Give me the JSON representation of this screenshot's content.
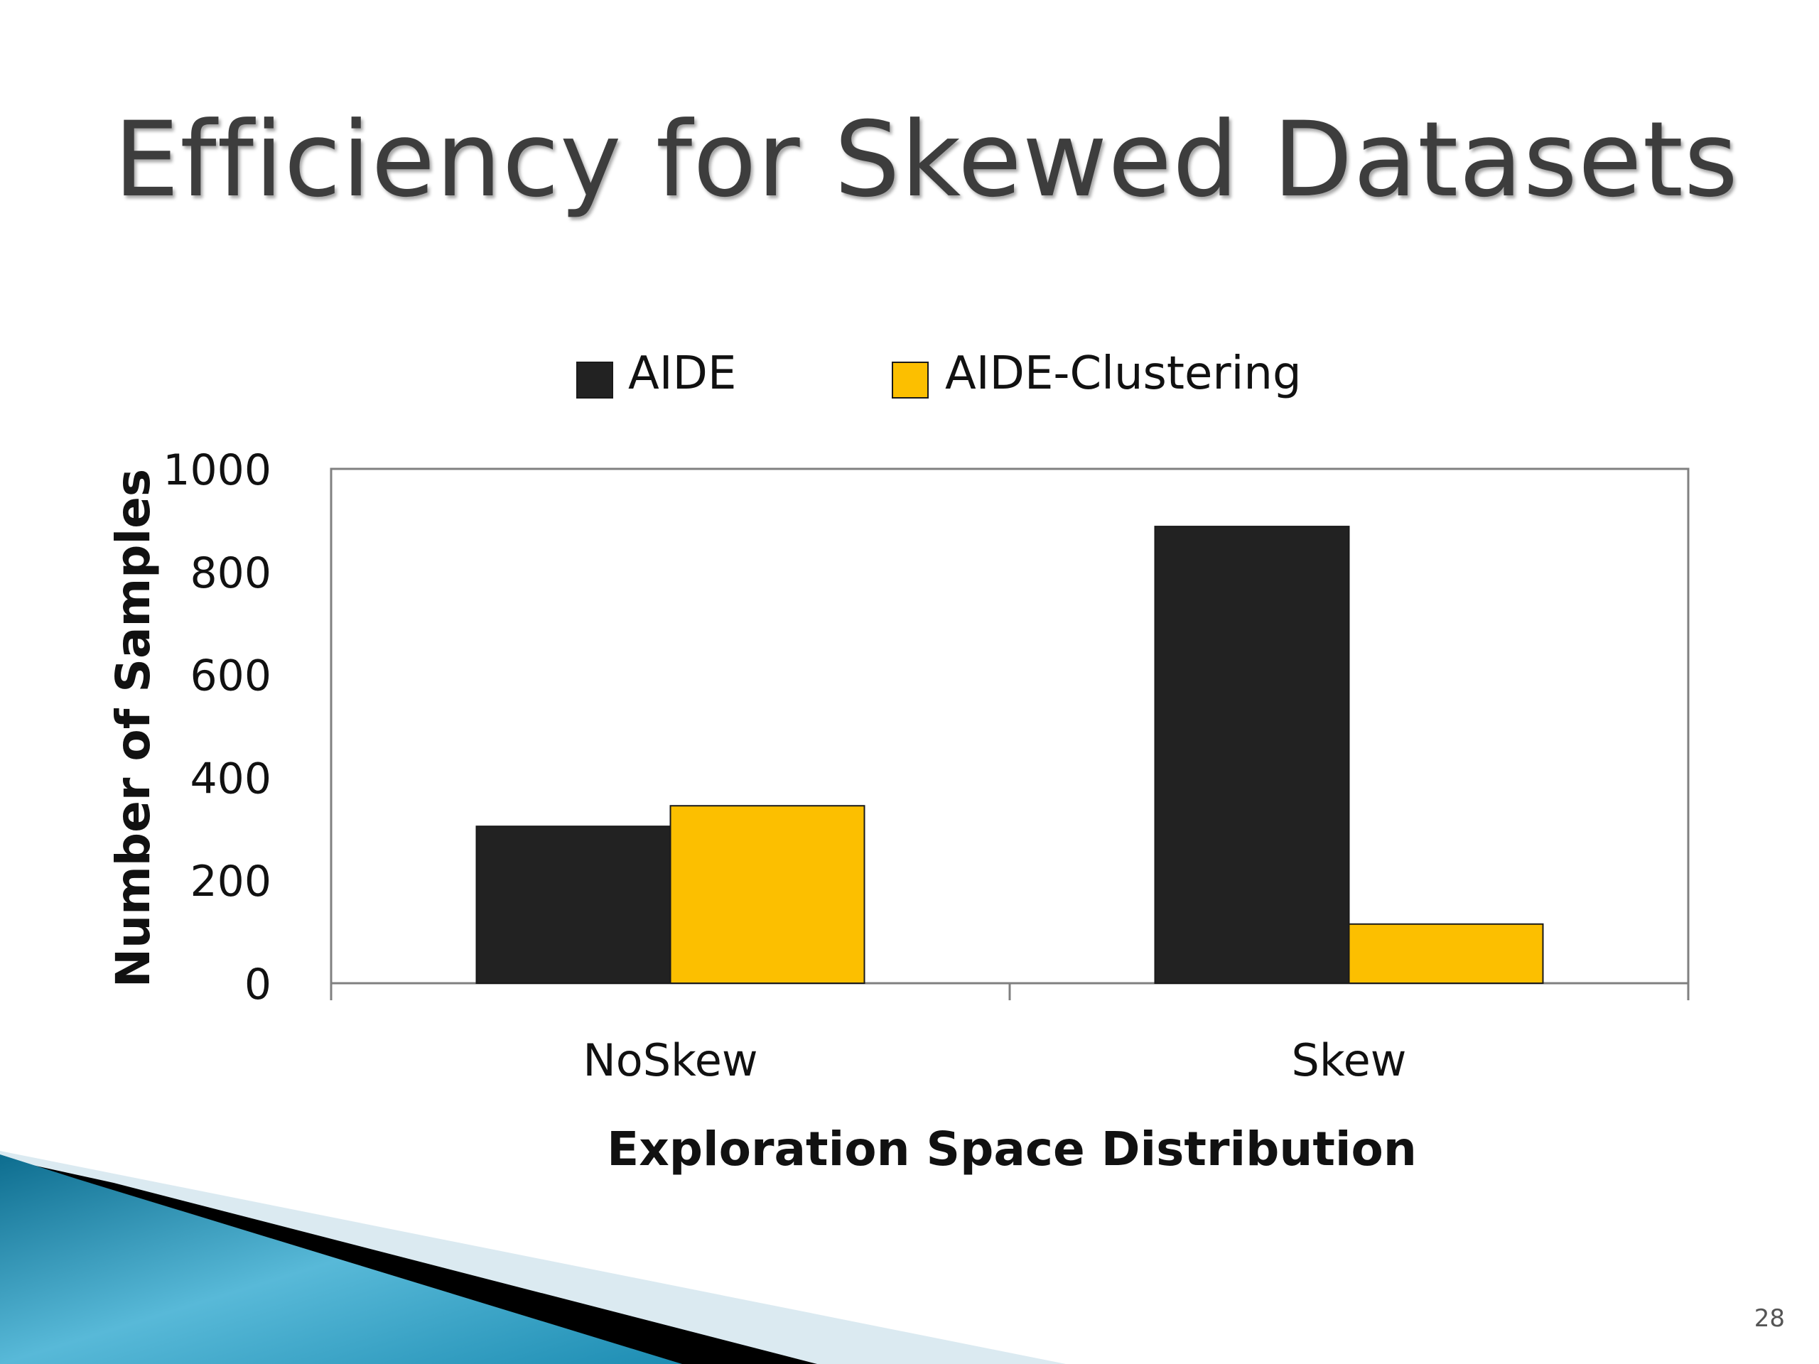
{
  "slide": {
    "title": "Efficiency for Skewed Datasets",
    "page_number": "28"
  },
  "colors": {
    "AIDE": "#222222",
    "AIDE-Clustering": "#fcbf00",
    "axis": "#808080",
    "title_text": "#3d3d3d"
  },
  "chart_data": {
    "type": "bar",
    "title": "",
    "xlabel": "Exploration Space Distribution",
    "ylabel": "Number of Samples",
    "categories": [
      "NoSkew",
      "Skew"
    ],
    "series": [
      {
        "name": "AIDE",
        "values": [
          305,
          888
        ]
      },
      {
        "name": "AIDE-Clustering",
        "values": [
          345,
          115
        ]
      }
    ],
    "ylim": [
      0,
      1000
    ],
    "yticks": [
      0,
      200,
      400,
      600,
      800,
      1000
    ],
    "grid": false,
    "legend": "top-center"
  }
}
